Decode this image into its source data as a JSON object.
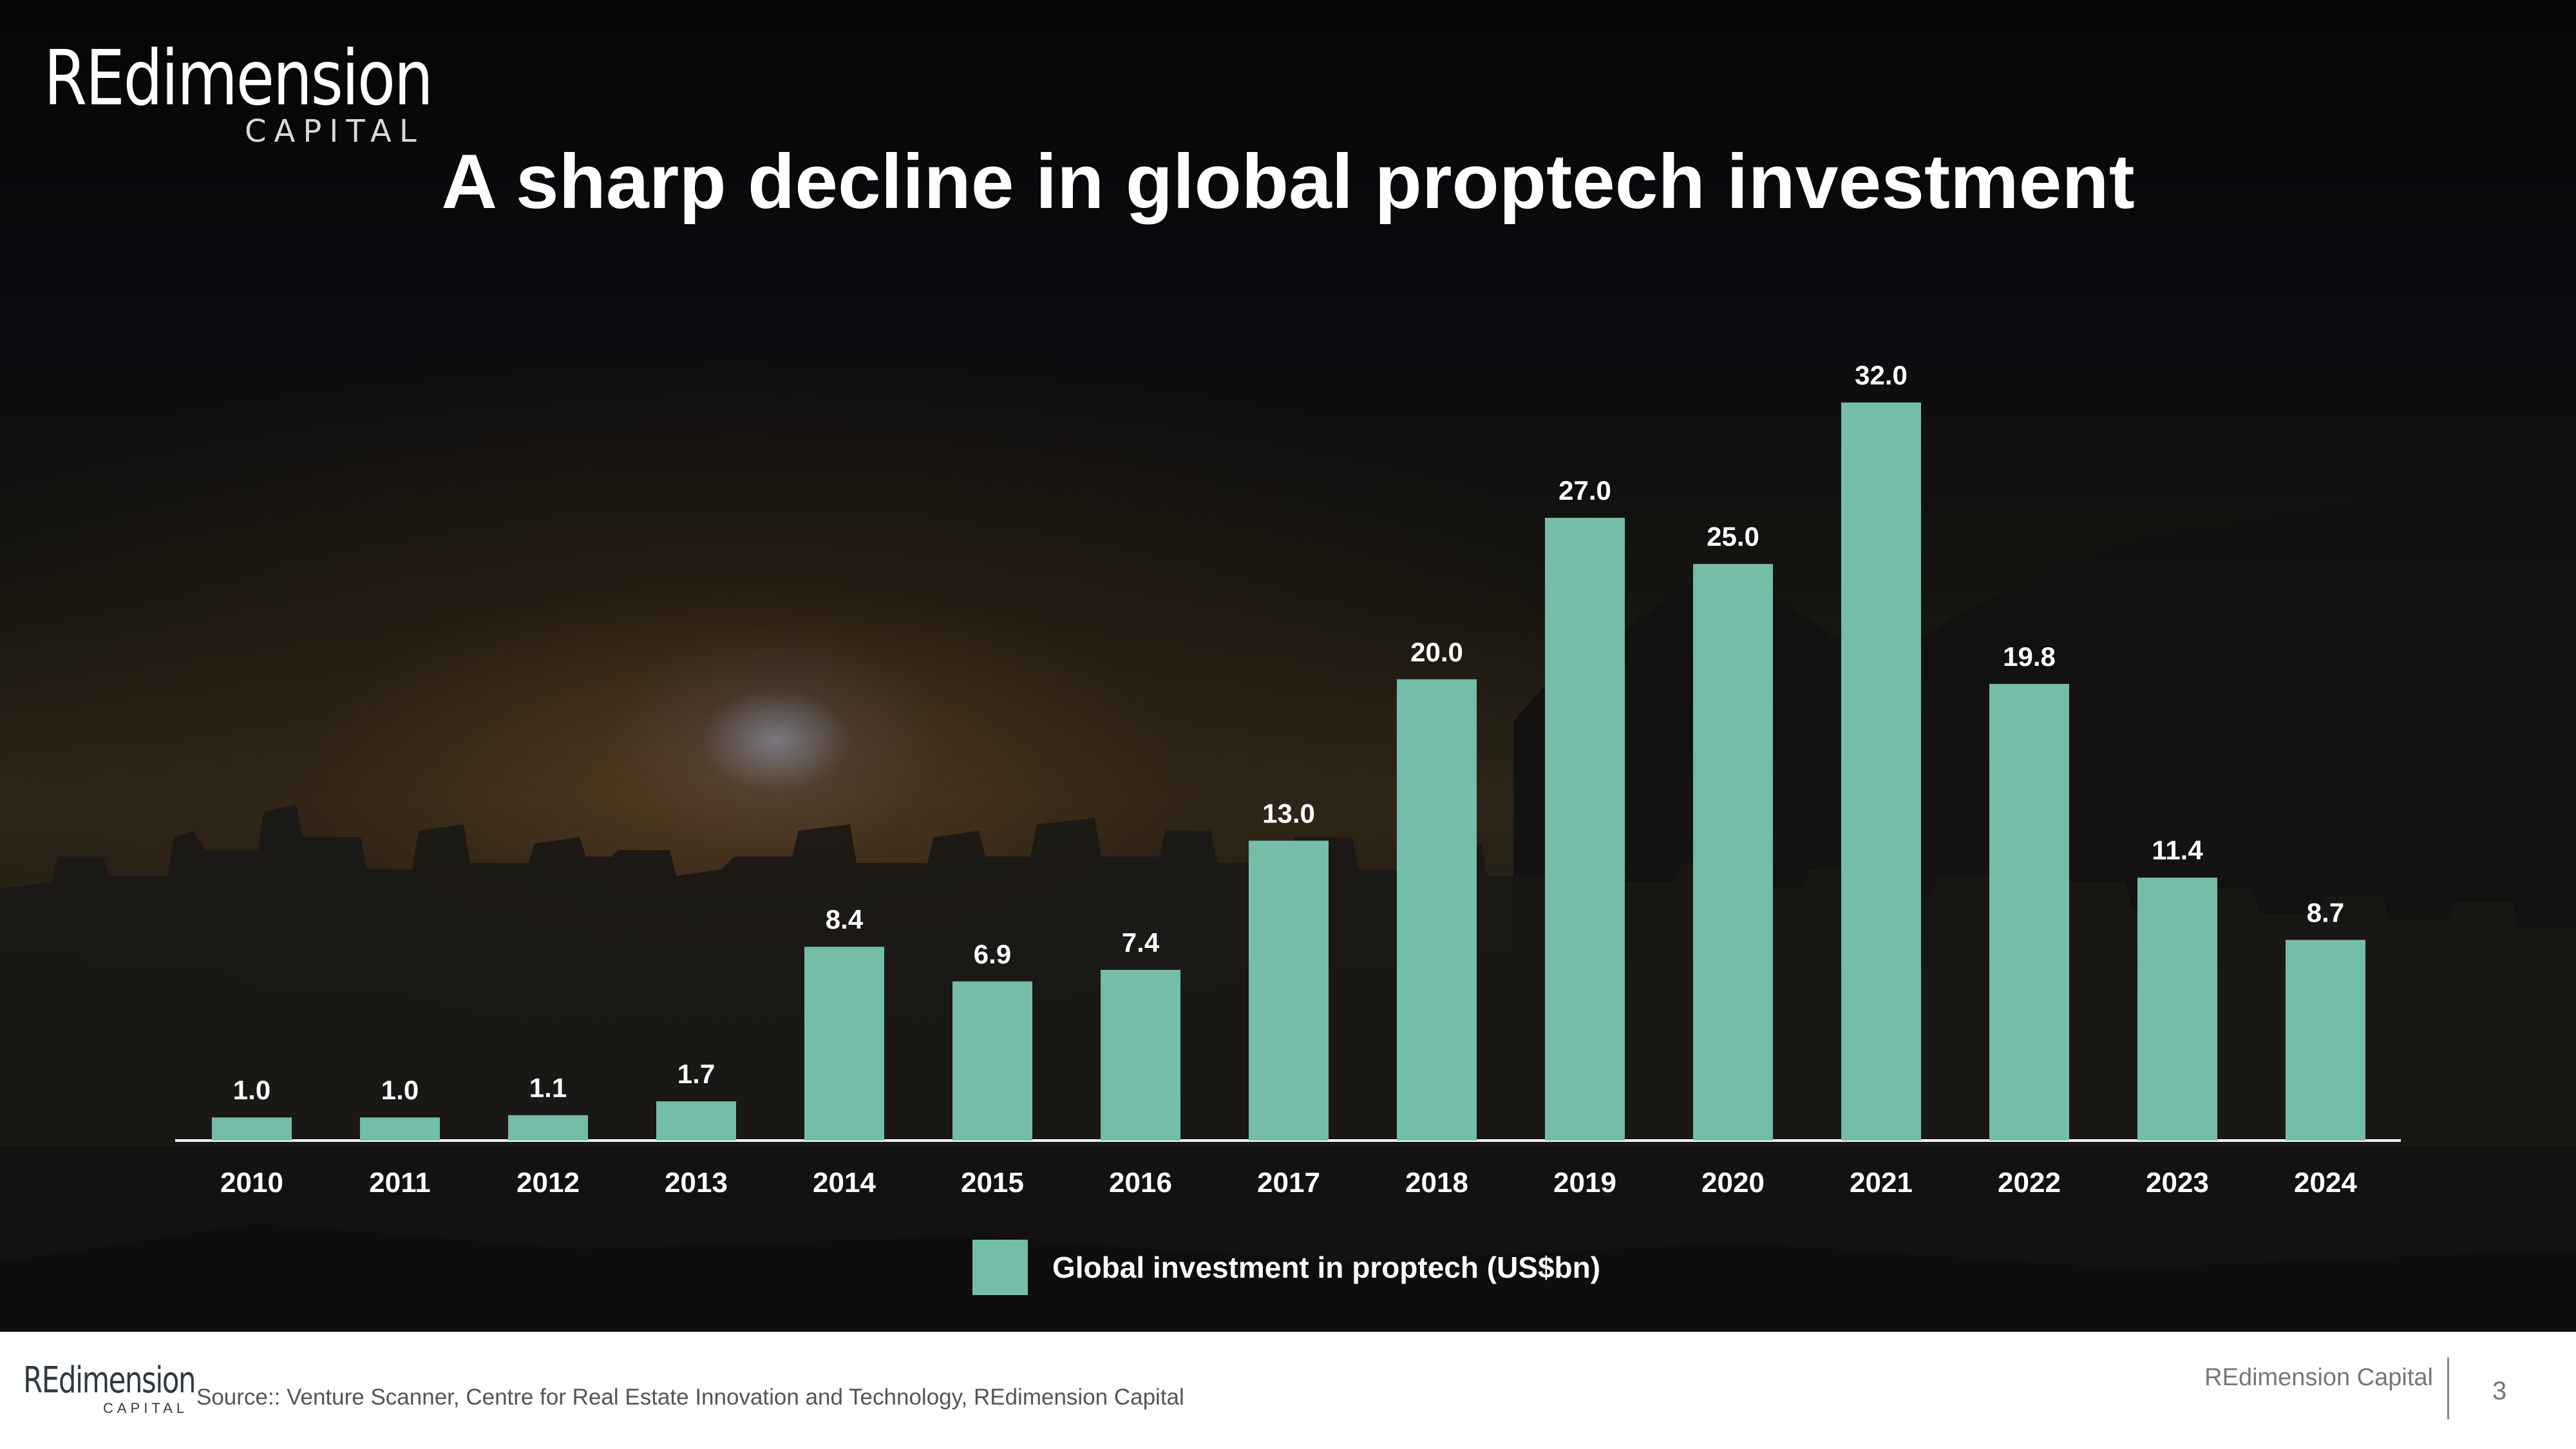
{
  "logo": {
    "main": "REdimension",
    "sub": "CAPITAL"
  },
  "title": "A sharp decline in global proptech investment",
  "chart_data": {
    "type": "bar",
    "title": "A sharp decline in global proptech investment",
    "categories": [
      "2010",
      "2011",
      "2012",
      "2013",
      "2014",
      "2015",
      "2016",
      "2017",
      "2018",
      "2019",
      "2020",
      "2021",
      "2022",
      "2023",
      "2024"
    ],
    "values": [
      1.0,
      1.0,
      1.1,
      1.7,
      8.4,
      6.9,
      7.4,
      13.0,
      20.0,
      27.0,
      25.0,
      32.0,
      19.8,
      11.4,
      8.7
    ],
    "value_labels": [
      "1.0",
      "1.0",
      "1.1",
      "1.7",
      "8.4",
      "6.9",
      "7.4",
      "13.0",
      "20.0",
      "27.0",
      "25.0",
      "32.0",
      "19.8",
      "11.4",
      "8.7"
    ],
    "series_name": "Global investment in proptech (US$bn)",
    "xlabel": "",
    "ylabel": "",
    "ylim": [
      0,
      32
    ],
    "grid": false,
    "legend_position": "bottom-center",
    "bar_color": "#74bda9"
  },
  "legend": {
    "label": "Global investment in proptech (US$bn)"
  },
  "footer": {
    "logo_main": "REdimension",
    "logo_sub": "CAPITAL",
    "source": "Source:: Venture Scanner, Centre for Real Estate Innovation and Technology, REdimension Capital",
    "company": "REdimension Capital",
    "page_number": "3"
  },
  "colors": {
    "bar": "#74bda9",
    "text": "#ffffff",
    "footer_bg": "#ffffff"
  }
}
